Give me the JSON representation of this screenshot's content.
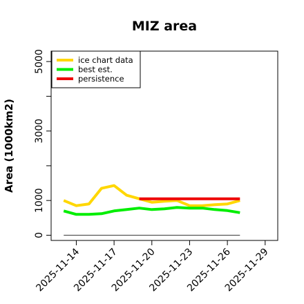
{
  "chart_data": {
    "type": "line",
    "title": "MIZ area",
    "xlabel": "",
    "ylabel": "Area (1000km2)",
    "x_tick_labels": [
      "2025-11-14",
      "2025-11-17",
      "2025-11-20",
      "2025-11-23",
      "2025-11-26",
      "2025-11-29"
    ],
    "y_ticks": [
      0,
      1000,
      3000,
      5000
    ],
    "xlim": [
      "2025-11-12",
      "2025-11-30"
    ],
    "ylim": [
      -150,
      5300
    ],
    "grid": false,
    "legend_position": "top-left",
    "series": [
      {
        "name": "ice chart data",
        "color": "#FFD700",
        "x": [
          "2025-11-13",
          "2025-11-14",
          "2025-11-15",
          "2025-11-16",
          "2025-11-17",
          "2025-11-18",
          "2025-11-19",
          "2025-11-20",
          "2025-11-21",
          "2025-11-22",
          "2025-11-23",
          "2025-11-24",
          "2025-11-25",
          "2025-11-26",
          "2025-11-27"
        ],
        "values": [
          1000,
          850,
          900,
          1350,
          1430,
          1150,
          1050,
          950,
          980,
          1000,
          850,
          850,
          880,
          900,
          1000
        ]
      },
      {
        "name": "best est.",
        "color": "#00EE00",
        "x": [
          "2025-11-13",
          "2025-11-14",
          "2025-11-15",
          "2025-11-16",
          "2025-11-17",
          "2025-11-18",
          "2025-11-19",
          "2025-11-20",
          "2025-11-21",
          "2025-11-22",
          "2025-11-23",
          "2025-11-24",
          "2025-11-25",
          "2025-11-26",
          "2025-11-27"
        ],
        "values": [
          700,
          600,
          600,
          620,
          700,
          740,
          780,
          740,
          760,
          800,
          780,
          780,
          740,
          710,
          650
        ]
      },
      {
        "name": "persistence",
        "color": "#EE0000",
        "x": [
          "2025-11-19",
          "2025-11-27"
        ],
        "values": [
          1050,
          1050
        ]
      },
      {
        "name": "",
        "color": "#555555",
        "x": [
          "2025-11-13",
          "2025-11-27"
        ],
        "values": [
          0,
          0
        ]
      }
    ]
  }
}
